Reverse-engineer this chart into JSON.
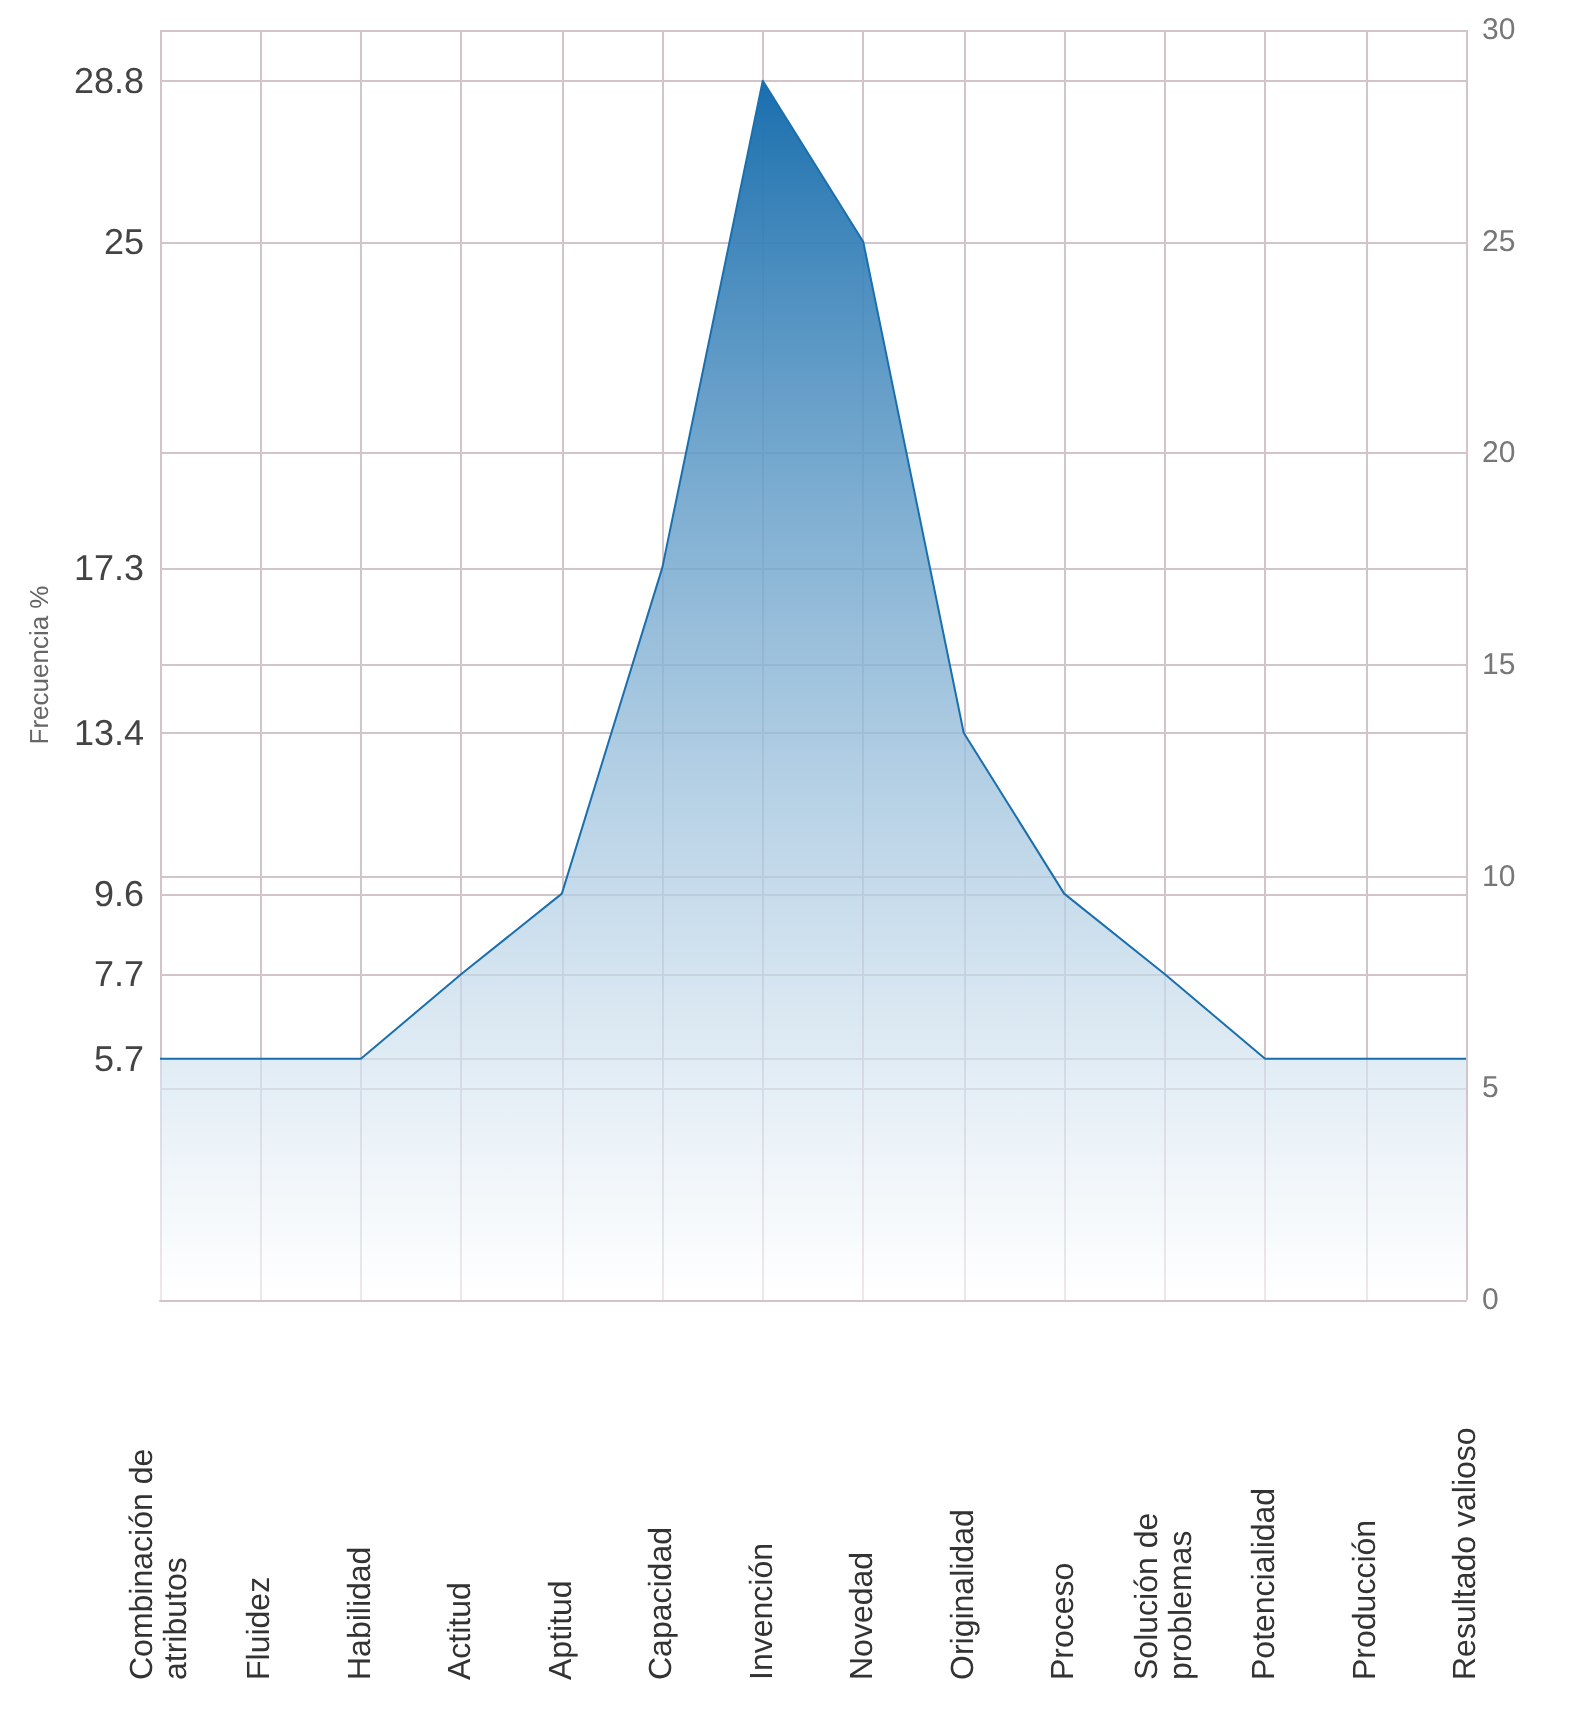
{
  "chart_data": {
    "type": "area",
    "ylabel": "Frecuencia %",
    "categories": [
      "Combinación de atributos",
      "Fluidez",
      "Habilidad",
      "Actitud",
      "Aptitud",
      "Capacidad",
      "Invención",
      "Novedad",
      "Originalidad",
      "Proceso",
      "Solución de problemas",
      "Potencialidad",
      "Producción",
      "Resultado valioso"
    ],
    "series": [
      {
        "color": "#1a6fae",
        "values": [
          5.7,
          5.7,
          5.7,
          7.7,
          9.6,
          17.3,
          28.8,
          25,
          13.4,
          9.6,
          7.7,
          5.7,
          5.7,
          5.7
        ]
      }
    ],
    "ylim": [
      0,
      30
    ],
    "yticks": [
      5.7,
      7.7,
      9.6,
      13.4,
      17.3,
      25,
      28.8
    ],
    "y2lim": [
      0,
      30
    ],
    "y2ticks": [
      0,
      5,
      10,
      15,
      20,
      25,
      30
    ],
    "grid": true,
    "marker": "none"
  }
}
